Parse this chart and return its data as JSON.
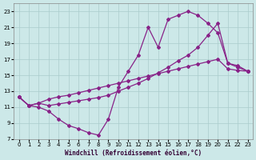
{
  "bg_color": "#cce8e8",
  "grid_color": "#aacccc",
  "line_color": "#882288",
  "xlim": [
    -0.5,
    23.5
  ],
  "ylim": [
    7,
    24
  ],
  "xticks": [
    0,
    1,
    2,
    3,
    4,
    5,
    6,
    7,
    8,
    9,
    10,
    11,
    12,
    13,
    14,
    15,
    16,
    17,
    18,
    19,
    20,
    21,
    22,
    23
  ],
  "yticks": [
    7,
    9,
    11,
    13,
    15,
    17,
    19,
    21,
    23
  ],
  "xlabel": "Windchill (Refroidissement éolien,°C)",
  "curve1_x": [
    0,
    1,
    2,
    3,
    4,
    5,
    6,
    7,
    8,
    9,
    10,
    11,
    12,
    13,
    14,
    15,
    16,
    17,
    18,
    19,
    20,
    21,
    22,
    23
  ],
  "curve1_y": [
    12.3,
    11.2,
    11.5,
    12.0,
    12.3,
    12.5,
    12.8,
    13.1,
    13.4,
    13.7,
    14.0,
    14.3,
    14.6,
    14.9,
    15.2,
    15.5,
    15.8,
    16.1,
    16.4,
    16.7,
    17.0,
    15.8,
    15.6,
    15.5
  ],
  "curve2_x": [
    0,
    1,
    2,
    3,
    4,
    5,
    6,
    7,
    8,
    9,
    10,
    11,
    12,
    13,
    14,
    15,
    16,
    17,
    18,
    19,
    20,
    21,
    22,
    23
  ],
  "curve2_y": [
    12.3,
    11.2,
    11.0,
    10.5,
    9.5,
    8.7,
    8.3,
    7.8,
    7.5,
    9.5,
    13.5,
    15.5,
    17.5,
    21.0,
    18.5,
    22.0,
    22.5,
    23.0,
    22.5,
    21.5,
    20.3,
    16.5,
    16.2,
    15.5
  ],
  "curve3_x": [
    0,
    1,
    2,
    3,
    4,
    5,
    6,
    7,
    8,
    9,
    10,
    11,
    12,
    13,
    14,
    15,
    16,
    17,
    18,
    19,
    20,
    21,
    22,
    23
  ],
  "curve3_y": [
    12.3,
    11.2,
    11.5,
    11.2,
    11.4,
    11.6,
    11.8,
    12.0,
    12.2,
    12.5,
    13.0,
    13.5,
    14.0,
    14.6,
    15.3,
    16.0,
    16.8,
    17.5,
    18.5,
    20.0,
    21.5,
    16.5,
    16.0,
    15.5
  ]
}
